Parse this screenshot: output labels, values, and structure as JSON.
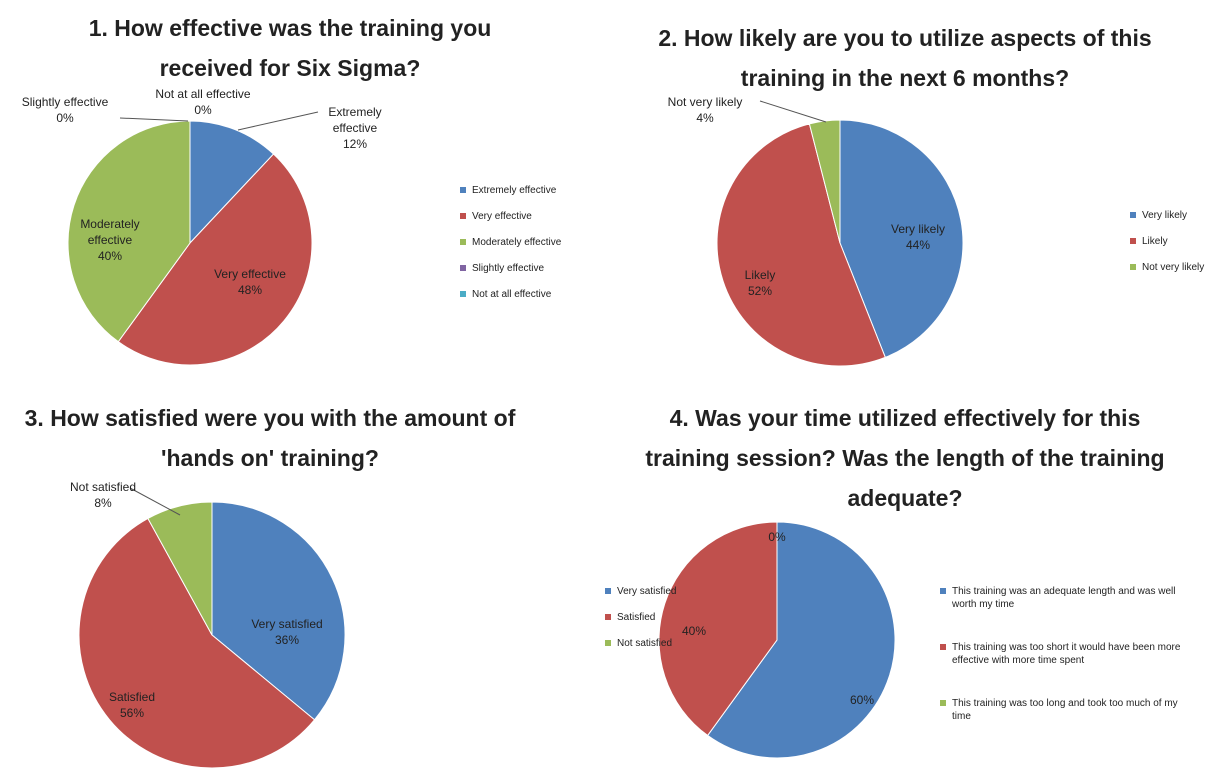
{
  "chart_data": [
    {
      "type": "pie",
      "title": "1. How effective was the training you received for Six Sigma?",
      "categories": [
        "Extremely effective",
        "Very effective",
        "Moderately effective",
        "Slightly effective",
        "Not at all effective"
      ],
      "values": [
        12,
        48,
        40,
        0,
        0
      ],
      "value_labels": [
        "12%",
        "48%",
        "40%",
        "0%",
        "0%"
      ],
      "colors": [
        "#4f81bd",
        "#c0504d",
        "#9bbb59",
        "#8064a2",
        "#4bacc6"
      ]
    },
    {
      "type": "pie",
      "title": "2. How likely are you to utilize aspects of this training in the next 6 months?",
      "categories": [
        "Very likely",
        "Likely",
        "Not very likely"
      ],
      "values": [
        44,
        52,
        4
      ],
      "value_labels": [
        "44%",
        "52%",
        "4%"
      ],
      "colors": [
        "#4f81bd",
        "#c0504d",
        "#9bbb59"
      ]
    },
    {
      "type": "pie",
      "title": "3. How satisfied were you with the amount of 'hands on' training?",
      "categories": [
        "Very satisfied",
        "Satisfied",
        "Not satisfied"
      ],
      "values": [
        36,
        56,
        8
      ],
      "value_labels": [
        "36%",
        "56%",
        "8%"
      ],
      "colors": [
        "#4f81bd",
        "#c0504d",
        "#9bbb59"
      ]
    },
    {
      "type": "pie",
      "title": "4. Was your time utilized effectively for this training session? Was the length of the training adequate?",
      "categories": [
        "This training was an adequate length and was well worth my time",
        "This training was too short it would have been more effective with more time spent",
        "This training was too long and took too much of my time"
      ],
      "values": [
        60,
        40,
        0
      ],
      "value_labels": [
        "60%",
        "40%",
        "0%"
      ],
      "colors": [
        "#4f81bd",
        "#c0504d",
        "#9bbb59"
      ]
    }
  ]
}
